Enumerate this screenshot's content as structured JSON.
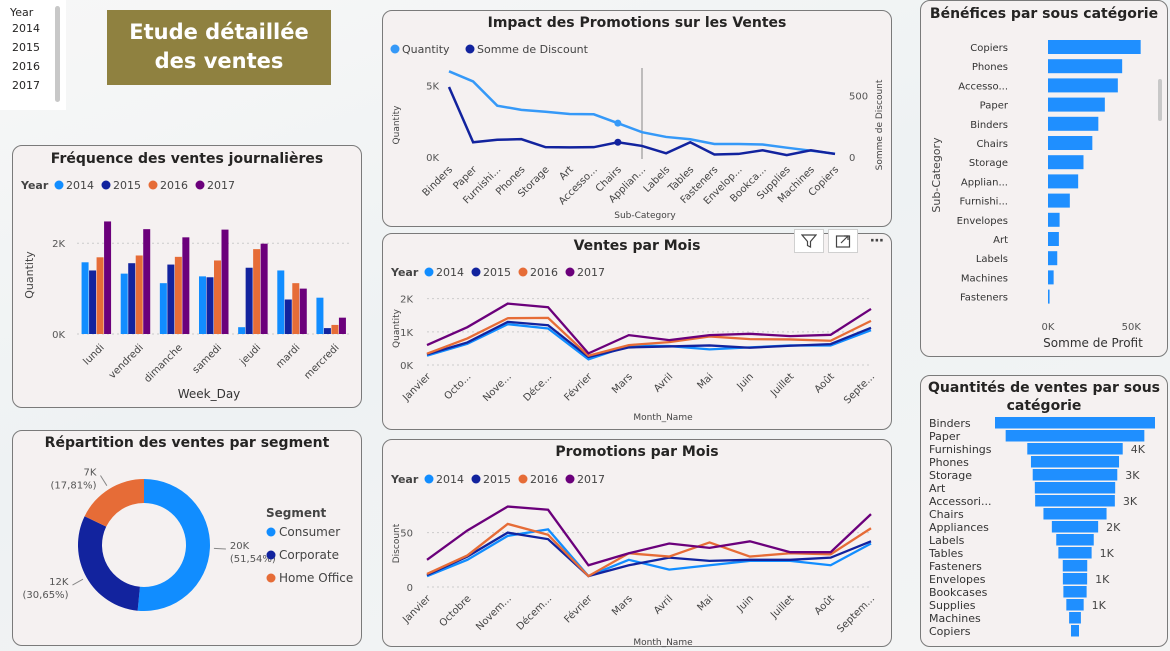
{
  "slicer": {
    "header": "Year",
    "items": [
      "2014",
      "2015",
      "2016",
      "2017"
    ]
  },
  "banner": {
    "line1": "Etude détaillée",
    "line2": "des ventes"
  },
  "colors": {
    "y2014": "#118dff",
    "y2015": "#12239e",
    "y2016": "#e66c37",
    "y2017": "#6b007b",
    "bar": "#1f8fff",
    "qty": "#3599f8"
  },
  "visual_header": {
    "filter_icon": "filter-icon",
    "focus_icon": "focus-mode-icon",
    "more_icon": "more-options-icon"
  },
  "chart_data": [
    {
      "id": "freq",
      "type": "bar",
      "title": "Fréquence des ventes journalières",
      "legend_title": "Year",
      "xlabel": "Week_Day",
      "ylabel": "Quantity",
      "ylim": [
        0,
        2600
      ],
      "ytick_labels": [
        "0K",
        "2K"
      ],
      "ytick_values": [
        0,
        2000
      ],
      "categories": [
        "lundi",
        "vendredi",
        "dimanche",
        "samedi",
        "jeudi",
        "mardi",
        "mercredi"
      ],
      "series": [
        {
          "name": "2014",
          "values": [
            1580,
            1330,
            1120,
            1270,
            150,
            1400,
            800
          ]
        },
        {
          "name": "2015",
          "values": [
            1400,
            1560,
            1530,
            1250,
            1460,
            760,
            130
          ]
        },
        {
          "name": "2016",
          "values": [
            1690,
            1730,
            1700,
            1620,
            1870,
            1120,
            200
          ]
        },
        {
          "name": "2017",
          "values": [
            2480,
            2310,
            2130,
            2300,
            1990,
            1000,
            360
          ]
        }
      ]
    },
    {
      "id": "segment",
      "type": "pie",
      "title": "Répartition des ventes par segment",
      "legend_title": "Segment",
      "slices": [
        {
          "name": "Consumer",
          "value": 51.54,
          "label1": "20K",
          "label2": "(51,54%)"
        },
        {
          "name": "Corporate",
          "value": 30.65,
          "label1": "12K",
          "label2": "(30,65%)"
        },
        {
          "name": "Home Office",
          "value": 17.81,
          "label1": "7K",
          "label2": "(17,81%)"
        }
      ]
    },
    {
      "id": "promo",
      "type": "line",
      "title": "Impact des Promotions sur les Ventes",
      "xlabel": "Sub-Category",
      "ylabel": "Quantity",
      "ylabel_right": "Somme de Discount",
      "ylim": [
        0,
        6000
      ],
      "ylim_right": [
        0,
        700
      ],
      "ytick_labels": [
        "0K",
        "5K"
      ],
      "ytick_values": [
        0,
        5000
      ],
      "ytick_right_labels": [
        "0",
        "500"
      ],
      "ytick_right_values": [
        0,
        500
      ],
      "categories": [
        "Binders",
        "Paper",
        "Furnishi...",
        "Phones",
        "Storage",
        "Art",
        "Accesso...",
        "Chairs",
        "Applian...",
        "Labels",
        "Tables",
        "Fasteners",
        "Envelop...",
        "Bookca...",
        "Supplies",
        "Machines",
        "Copiers"
      ],
      "series": [
        {
          "name": "Quantity",
          "values": [
            5980,
            5270,
            3580,
            3290,
            3160,
            3000,
            2980,
            2360,
            1730,
            1400,
            1240,
            910,
            910,
            870,
            650,
            440,
            230
          ]
        },
        {
          "name": "Somme de Discount",
          "values": [
            570,
            120,
            140,
            145,
            80,
            78,
            80,
            120,
            90,
            30,
            120,
            20,
            25,
            55,
            15,
            55,
            25
          ]
        }
      ]
    },
    {
      "id": "month_sales",
      "type": "line",
      "title": "Ventes par Mois",
      "legend_title": "Year",
      "xlabel": "Month_Name",
      "ylabel": "Quantity",
      "ylim": [
        0,
        2200
      ],
      "ytick_labels": [
        "0K",
        "1K",
        "2K"
      ],
      "ytick_values": [
        0,
        1000,
        2000
      ],
      "categories": [
        "Janvier",
        "Octo...",
        "Nove...",
        "Déce...",
        "Février",
        "Mars",
        "Avril",
        "Mai",
        "Juin",
        "Juillet",
        "Août",
        "Septe..."
      ],
      "series": [
        {
          "name": "2014",
          "values": [
            280,
            640,
            1230,
            1100,
            170,
            580,
            570,
            470,
            530,
            590,
            590,
            1050
          ]
        },
        {
          "name": "2015",
          "values": [
            320,
            680,
            1300,
            1200,
            240,
            530,
            560,
            590,
            520,
            580,
            630,
            1120
          ]
        },
        {
          "name": "2016",
          "values": [
            340,
            800,
            1410,
            1420,
            280,
            600,
            690,
            860,
            780,
            770,
            730,
            1330
          ]
        },
        {
          "name": "2017",
          "values": [
            600,
            1140,
            1850,
            1740,
            350,
            900,
            750,
            900,
            940,
            870,
            910,
            1690
          ]
        }
      ]
    },
    {
      "id": "month_promo",
      "type": "line",
      "title": "Promotions par Mois",
      "legend_title": "Year",
      "xlabel": "Month_Name",
      "ylabel": "Discount",
      "ylim": [
        0,
        80
      ],
      "ytick_labels": [
        "0",
        "50"
      ],
      "ytick_values": [
        0,
        50
      ],
      "categories": [
        "Janvier",
        "Octobre",
        "Novem...",
        "Décem...",
        "Février",
        "Mars",
        "Avril",
        "Mai",
        "Juin",
        "Juillet",
        "Août",
        "Septem..."
      ],
      "series": [
        {
          "name": "2014",
          "values": [
            10,
            25,
            47,
            53,
            10,
            25,
            16,
            20,
            24,
            24,
            20,
            40
          ]
        },
        {
          "name": "2015",
          "values": [
            11,
            28,
            50,
            44,
            10,
            20,
            27,
            24,
            25,
            25,
            27,
            42
          ]
        },
        {
          "name": "2016",
          "values": [
            12,
            29,
            58,
            48,
            10,
            31,
            28,
            41,
            28,
            31,
            30,
            54
          ]
        },
        {
          "name": "2017",
          "values": [
            25,
            52,
            74,
            71,
            20,
            31,
            40,
            36,
            42,
            32,
            32,
            67
          ]
        }
      ]
    },
    {
      "id": "profit",
      "type": "bar",
      "orientation": "horizontal",
      "title": "Bénéfices par sous catégorie",
      "xlabel": "Somme de Profit",
      "ylabel": "Sub-Category",
      "xlim": [
        0,
        60000
      ],
      "xtick_labels": [
        "0K",
        "50K"
      ],
      "xtick_values": [
        0,
        50000
      ],
      "categories": [
        "Copiers",
        "Phones",
        "Accesso...",
        "Paper",
        "Binders",
        "Chairs",
        "Storage",
        "Applian...",
        "Furnishi...",
        "Envelopes",
        "Art",
        "Labels",
        "Machines",
        "Fasteners"
      ],
      "values": [
        55600,
        44500,
        41900,
        34100,
        30200,
        26600,
        21300,
        18100,
        13100,
        6960,
        6530,
        5550,
        3380,
        950
      ]
    },
    {
      "id": "funnel",
      "type": "bar",
      "orientation": "funnel",
      "title_line1": "Quantités de ventes par sous",
      "title_line2": "catégorie",
      "categories": [
        "Binders",
        "Paper",
        "Furnishings",
        "Phones",
        "Storage",
        "Art",
        "Accessori...",
        "Chairs",
        "Appliances",
        "Labels",
        "Tables",
        "Fasteners",
        "Envelopes",
        "Bookcases",
        "Supplies",
        "Machines",
        "Copiers"
      ],
      "values": [
        5974,
        5178,
        3563,
        3289,
        3158,
        3000,
        2976,
        2356,
        1729,
        1400,
        1241,
        914,
        906,
        868,
        647,
        440,
        234
      ],
      "value_labels": [
        "",
        "",
        "4K",
        "",
        "3K",
        "",
        "3K",
        "",
        "2K",
        "",
        "1K",
        "",
        "1K",
        "",
        "1K",
        "",
        ""
      ]
    }
  ]
}
